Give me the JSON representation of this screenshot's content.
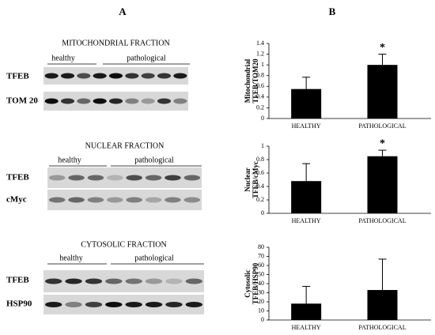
{
  "panel_a": {
    "label": "A",
    "fractions": [
      {
        "title": "MITOCHONDRIAL FRACTION",
        "groups": [
          "healthy",
          "pathological"
        ],
        "blots": [
          "TFEB",
          "TOM 20"
        ]
      },
      {
        "title": "NUCLEAR FRACTION",
        "groups": [
          "healthy",
          "pathological"
        ],
        "blots": [
          "TFEB",
          "cMyc"
        ]
      },
      {
        "title": "CYTOSOLIC FRACTION",
        "groups": [
          "healthy",
          "pathological"
        ],
        "blots": [
          "TFEB",
          "HSP90"
        ]
      }
    ]
  },
  "panel_b": {
    "label": "B"
  },
  "chart_data": [
    {
      "type": "bar",
      "ylabel": [
        "Mitochondrial",
        "TFEB/TOM20"
      ],
      "categories": [
        "HEALTHY",
        "PATHOLOGICAL"
      ],
      "values": [
        0.55,
        1.0
      ],
      "errors": [
        0.22,
        0.2
      ],
      "color": "#000000",
      "annotations": [
        {
          "category": "PATHOLOGICAL",
          "text": "*"
        }
      ],
      "ylim": [
        0,
        1.4
      ],
      "yticks": [
        0,
        0.2,
        0.4,
        0.6,
        0.8,
        1,
        1.2,
        1.4
      ]
    },
    {
      "type": "bar",
      "ylabel": [
        "Nuclear",
        "TFEB/cMyc"
      ],
      "categories": [
        "HEALTHY",
        "PATHOLOGICAL"
      ],
      "values": [
        0.48,
        0.85
      ],
      "errors": [
        0.26,
        0.09
      ],
      "color": "#000000",
      "annotations": [
        {
          "category": "PATHOLOGICAL",
          "text": "*"
        }
      ],
      "ylim": [
        0,
        1
      ],
      "yticks": [
        0,
        0.2,
        0.4,
        0.6,
        0.8,
        1
      ]
    },
    {
      "type": "bar",
      "ylabel": [
        "Cytosolic",
        "TFEB/HSP90"
      ],
      "categories": [
        "HEALTHY",
        "PATHOLOGICAL"
      ],
      "values": [
        18,
        33
      ],
      "errors": [
        19,
        34
      ],
      "color": "#000000",
      "ylim": [
        0,
        80
      ],
      "yticks": [
        0,
        10,
        20,
        30,
        40,
        50,
        60,
        70,
        80
      ]
    }
  ]
}
